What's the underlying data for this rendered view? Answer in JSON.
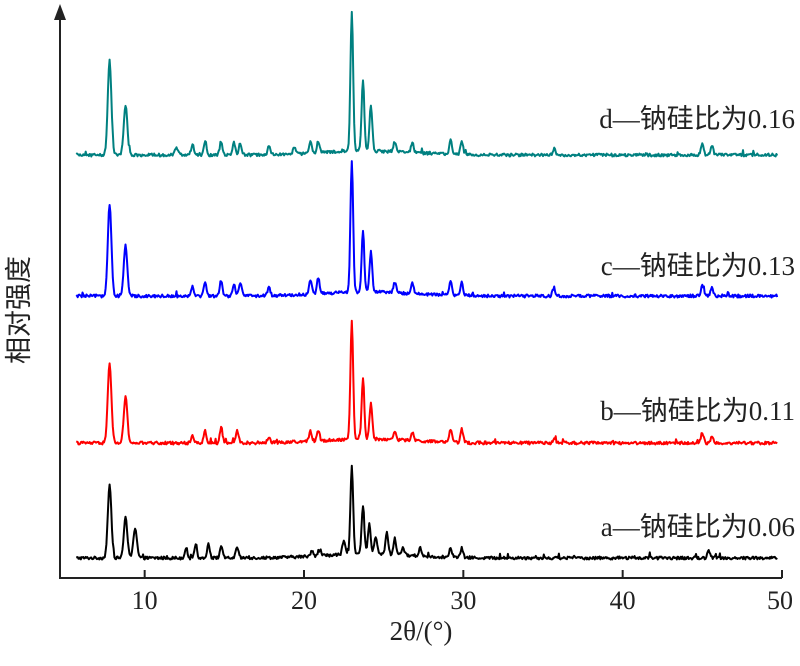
{
  "chart_data": {
    "type": "line",
    "xlabel": "2θ/(°)",
    "ylabel": "相对强度",
    "xlim": [
      5,
      50
    ],
    "xticks": [
      "10",
      "20",
      "30",
      "40",
      "50"
    ],
    "yticks_shown": false,
    "grid": false,
    "legend": "inline labels to the right of each curve",
    "offsets_note_hidden": true,
    "series": [
      {
        "name": "a—钠硅比为0.06",
        "color": "#000000",
        "peaks": [
          [
            7.8,
            72
          ],
          [
            8.8,
            40
          ],
          [
            9.4,
            30
          ],
          [
            12.6,
            10
          ],
          [
            13.2,
            14
          ],
          [
            14.0,
            14
          ],
          [
            14.8,
            12
          ],
          [
            15.8,
            10
          ],
          [
            20.5,
            6
          ],
          [
            21.0,
            6
          ],
          [
            22.5,
            14
          ],
          [
            23.0,
            88
          ],
          [
            23.7,
            48
          ],
          [
            24.1,
            30
          ],
          [
            24.5,
            18
          ],
          [
            25.2,
            22
          ],
          [
            25.7,
            16
          ],
          [
            26.2,
            8
          ],
          [
            27.3,
            8
          ],
          [
            29.2,
            10
          ],
          [
            29.9,
            8
          ],
          [
            45.4,
            8
          ]
        ]
      },
      {
        "name": "b—钠硅比为0.11",
        "color": "#ff0000",
        "peaks": [
          [
            7.8,
            80
          ],
          [
            8.8,
            46
          ],
          [
            13.0,
            8
          ],
          [
            13.8,
            12
          ],
          [
            14.8,
            16
          ],
          [
            15.8,
            12
          ],
          [
            17.8,
            6
          ],
          [
            20.4,
            10
          ],
          [
            20.9,
            10
          ],
          [
            23.0,
            118
          ],
          [
            23.7,
            60
          ],
          [
            24.2,
            36
          ],
          [
            25.7,
            8
          ],
          [
            26.8,
            8
          ],
          [
            29.2,
            12
          ],
          [
            29.9,
            14
          ],
          [
            35.7,
            5
          ],
          [
            45.0,
            10
          ],
          [
            45.6,
            6
          ]
        ]
      },
      {
        "name": "c—钠硅比为0.13",
        "color": "#0000ff",
        "peaks": [
          [
            7.8,
            92
          ],
          [
            8.8,
            50
          ],
          [
            13.0,
            10
          ],
          [
            13.8,
            14
          ],
          [
            14.8,
            16
          ],
          [
            15.6,
            12
          ],
          [
            16.0,
            14
          ],
          [
            17.8,
            8
          ],
          [
            20.4,
            14
          ],
          [
            20.9,
            16
          ],
          [
            23.0,
            130
          ],
          [
            23.7,
            60
          ],
          [
            24.2,
            40
          ],
          [
            25.7,
            10
          ],
          [
            26.8,
            10
          ],
          [
            29.2,
            14
          ],
          [
            29.9,
            14
          ],
          [
            35.7,
            6
          ],
          [
            45.0,
            10
          ],
          [
            45.6,
            8
          ]
        ]
      },
      {
        "name": "d—钠硅比为0.16",
        "color": "#008080",
        "peaks": [
          [
            7.8,
            94
          ],
          [
            8.8,
            50
          ],
          [
            12.0,
            8
          ],
          [
            13.0,
            10
          ],
          [
            13.8,
            14
          ],
          [
            14.8,
            14
          ],
          [
            15.6,
            12
          ],
          [
            16.0,
            12
          ],
          [
            17.8,
            8
          ],
          [
            19.4,
            6
          ],
          [
            20.4,
            12
          ],
          [
            20.9,
            12
          ],
          [
            23.0,
            138
          ],
          [
            23.7,
            72
          ],
          [
            24.2,
            46
          ],
          [
            25.7,
            10
          ],
          [
            26.8,
            10
          ],
          [
            29.2,
            14
          ],
          [
            29.9,
            14
          ],
          [
            35.7,
            6
          ],
          [
            45.0,
            12
          ],
          [
            45.6,
            10
          ]
        ]
      }
    ]
  }
}
